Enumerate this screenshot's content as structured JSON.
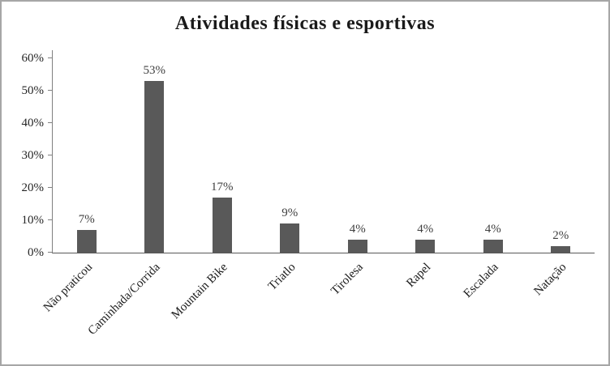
{
  "chart_data": {
    "type": "bar",
    "title": "Atividades físicas e esportivas",
    "categories": [
      "Não praticou",
      "Caminhada/Corrida",
      "Mountain Bike",
      "Triatlo",
      "Tirolesa",
      "Rapel",
      "Escalada",
      "Natação"
    ],
    "values": [
      7,
      53,
      17,
      9,
      4,
      4,
      4,
      2
    ],
    "value_labels": [
      "7%",
      "53%",
      "17%",
      "9%",
      "4%",
      "4%",
      "4%",
      "2%"
    ],
    "xlabel": "",
    "ylabel": "",
    "ylim": [
      0,
      60
    ],
    "ytick_step": 10,
    "ytick_labels": [
      "0%",
      "10%",
      "20%",
      "30%",
      "40%",
      "50%",
      "60%"
    ],
    "bar_color": "#595959",
    "grid": false,
    "legend": "none",
    "frame_border_color": "#a6a6a6"
  }
}
